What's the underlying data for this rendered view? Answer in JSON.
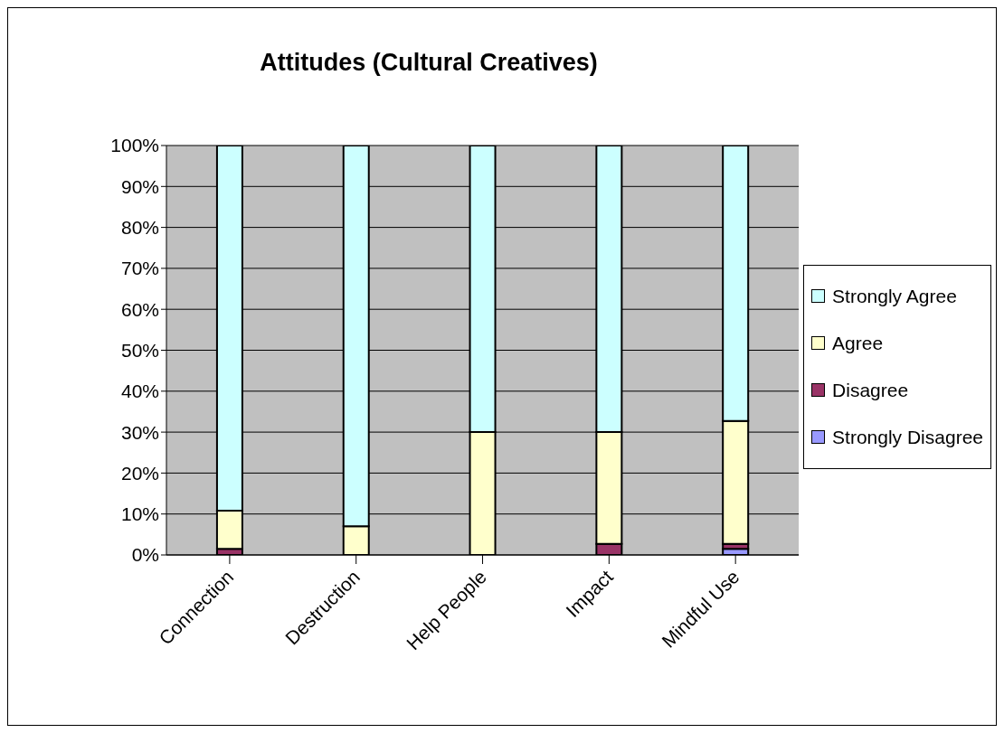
{
  "chart_data": {
    "type": "bar",
    "title": "Attitudes (Cultural Creatives)",
    "stacked": true,
    "categories": [
      "Connection",
      "Destruction",
      "Help People",
      "Impact",
      "Mindful Use"
    ],
    "series": [
      {
        "name": "Strongly Disagree",
        "color": "#9999ff",
        "values": [
          0,
          0,
          0,
          0,
          1.5
        ]
      },
      {
        "name": "Disagree",
        "color": "#993366",
        "values": [
          1.5,
          0,
          0,
          2.7,
          1.2
        ]
      },
      {
        "name": "Agree",
        "color": "#ffffcc",
        "values": [
          9.3,
          7,
          30,
          27.3,
          30
        ]
      },
      {
        "name": "Strongly Agree",
        "color": "#ccffff",
        "values": [
          89.2,
          93,
          70,
          70,
          67.3
        ]
      }
    ],
    "ylim": [
      0,
      100
    ],
    "yticks": [
      {
        "value": 0,
        "label": "0%"
      },
      {
        "value": 10,
        "label": "10%"
      },
      {
        "value": 20,
        "label": "20%"
      },
      {
        "value": 30,
        "label": "30%"
      },
      {
        "value": 40,
        "label": "40%"
      },
      {
        "value": 50,
        "label": "50%"
      },
      {
        "value": 60,
        "label": "60%"
      },
      {
        "value": 70,
        "label": "70%"
      },
      {
        "value": 80,
        "label": "80%"
      },
      {
        "value": 90,
        "label": "90%"
      },
      {
        "value": 100,
        "label": "100%"
      }
    ],
    "grid": "y",
    "legend": "right"
  }
}
